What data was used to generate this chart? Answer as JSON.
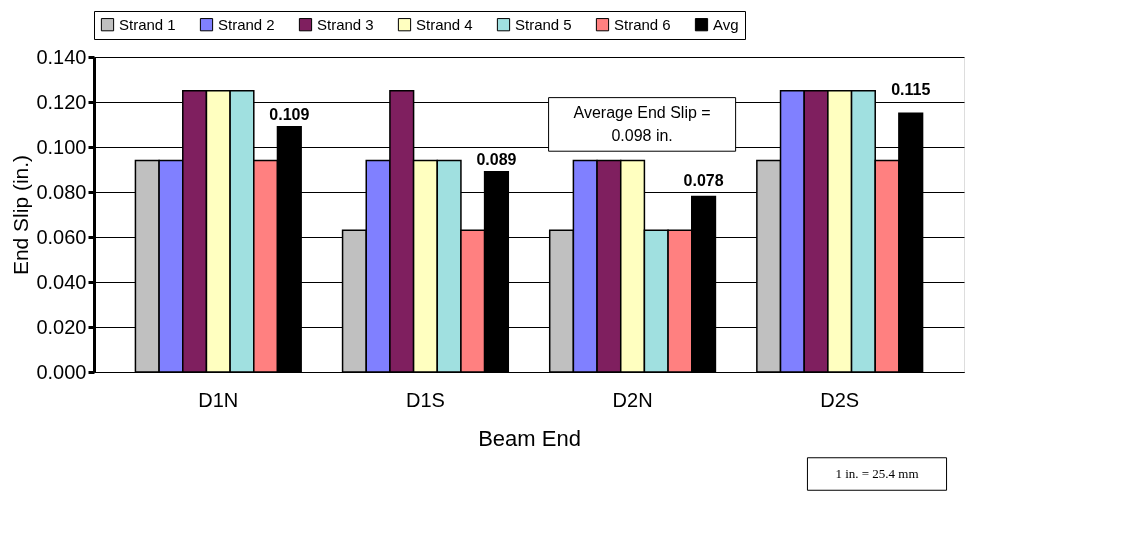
{
  "chart_data": {
    "type": "bar",
    "xlabel": "Beam End",
    "ylabel": "End Slip  (in.)",
    "categories": [
      "D1N",
      "D1S",
      "D2N",
      "D2S"
    ],
    "series": [
      {
        "name": "Strand 1",
        "color": "#c0c0c0",
        "values": [
          0.094,
          0.063,
          0.063,
          0.094
        ]
      },
      {
        "name": "Strand 2",
        "color": "#8080ff",
        "values": [
          0.094,
          0.094,
          0.094,
          0.125
        ]
      },
      {
        "name": "Strand 3",
        "color": "#7f1f5f",
        "values": [
          0.125,
          0.125,
          0.094,
          0.125
        ]
      },
      {
        "name": "Strand 4",
        "color": "#ffffc0",
        "values": [
          0.125,
          0.094,
          0.094,
          0.125
        ]
      },
      {
        "name": "Strand 5",
        "color": "#a0e0e0",
        "values": [
          0.125,
          0.094,
          0.063,
          0.125
        ]
      },
      {
        "name": "Strand 6",
        "color": "#ff8080",
        "values": [
          0.094,
          0.063,
          0.063,
          0.094
        ]
      },
      {
        "name": "Avg",
        "color": "#000000",
        "values": [
          0.109,
          0.089,
          0.078,
          0.115
        ],
        "value_labels": [
          "0.109",
          "0.089",
          "0.078",
          "0.115"
        ]
      }
    ],
    "ylim": [
      0,
      0.14
    ],
    "yticks": [
      {
        "value": 0,
        "label": "0.000"
      },
      {
        "value": 0.02,
        "label": "0.020"
      },
      {
        "value": 0.04,
        "label": "0.040"
      },
      {
        "value": 0.06,
        "label": "0.060"
      },
      {
        "value": 0.08,
        "label": "0.080"
      },
      {
        "value": 0.1,
        "label": "0.100"
      },
      {
        "value": 0.12,
        "label": "0.120"
      },
      {
        "value": 0.14,
        "label": "0.140"
      }
    ],
    "grid": "y",
    "legend": "top",
    "annotations": [
      "Average End Slip =\n0.098 in.",
      "1 in. = 25.4 mm"
    ]
  }
}
